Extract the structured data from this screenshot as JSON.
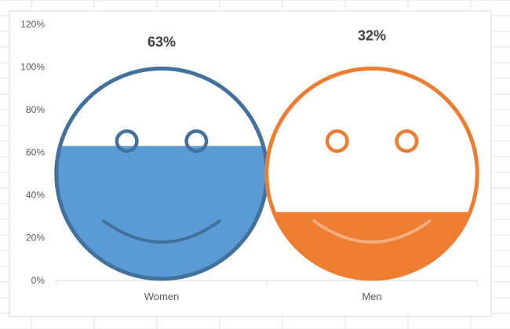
{
  "chart_data": {
    "type": "bar",
    "categories": [
      "Women",
      "Men"
    ],
    "values": [
      0.63,
      0.32
    ],
    "data_labels": [
      "63%",
      "32%"
    ],
    "ylim": [
      0,
      1.2
    ],
    "yticks": [
      "0%",
      "20%",
      "40%",
      "60%",
      "80%",
      "100%",
      "120%"
    ],
    "grid": false,
    "legend": "none",
    "colors": {
      "Women": {
        "fill": "#5b9bd5",
        "outline": "#41719c"
      },
      "Men": {
        "fill": "#ed7d31",
        "outline": "#ed7d31"
      }
    },
    "style": "smiley-face fill (face outline filled to the value level)"
  }
}
